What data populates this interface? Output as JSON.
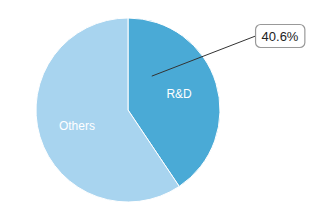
{
  "chart_data": {
    "type": "pie",
    "categories": [
      "R&D",
      "Others"
    ],
    "values": [
      40.6,
      59.4
    ],
    "colors": [
      "#4AAAD6",
      "#A8D4EF"
    ],
    "annotation": "40.6%"
  }
}
